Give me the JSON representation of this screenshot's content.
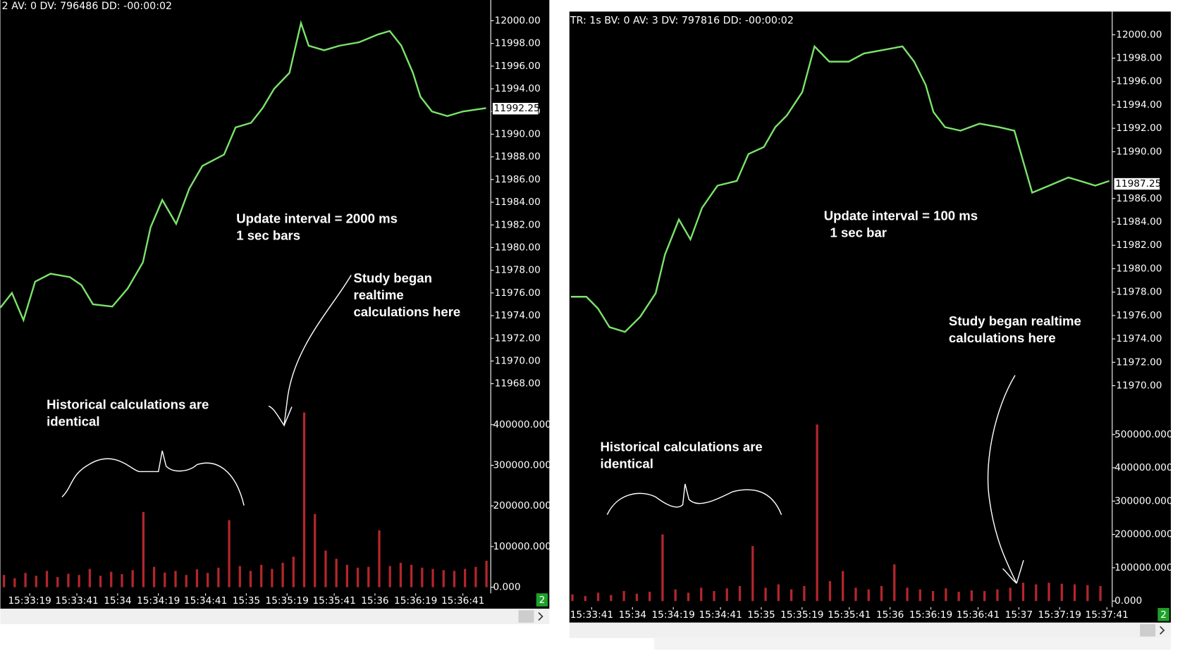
{
  "chart_data": [
    {
      "type": "price-volume",
      "header": "2 AV: 0 DV: 796486 DD: -00:00:02",
      "color": "#7be36b",
      "volume_color": "#b3262b",
      "x": [
        5.3,
        10.7,
        16.1,
        21.5,
        28.7,
        37.7,
        43.1,
        48.5,
        57.5,
        64.7,
        71.8,
        75.4,
        80.8,
        87.3,
        93.4,
        99.5,
        109.6,
        115.0,
        122.2,
        127.6,
        133.0,
        140.1,
        145.5,
        149.1,
        156.3,
        163.5,
        172.5,
        181.5,
        186.9,
        192.3,
        197.7,
        201.2,
        206.6,
        213.8,
        221.0,
        231.8
      ],
      "values": [
        11974.7,
        11976.0,
        11973.6,
        11977.0,
        11977.7,
        11977.4,
        11976.7,
        11975.0,
        11974.8,
        11976.4,
        11978.7,
        11981.8,
        11984.2,
        11982.1,
        11985.2,
        11987.2,
        11988.2,
        11990.6,
        11991.0,
        11992.3,
        11994.0,
        11995.4,
        11999.8,
        11997.8,
        11997.4,
        11997.8,
        11998.1,
        11998.8,
        11999.1,
        11997.8,
        11995.4,
        11993.3,
        11992.0,
        11991.6,
        11992.0,
        11992.3
      ],
      "volume": {
        "x": [
          7,
          12,
          17,
          22,
          27,
          32,
          37,
          42,
          47,
          52,
          57,
          62,
          67,
          72,
          77,
          82,
          87,
          92,
          97,
          102,
          107,
          112,
          117,
          122,
          127,
          132,
          137,
          142,
          147,
          152,
          157,
          162,
          167,
          172,
          177,
          182,
          187,
          192,
          197,
          202,
          207,
          212,
          217,
          222,
          227,
          232
        ],
        "values": [
          30000,
          22000,
          35000,
          28000,
          40000,
          25000,
          33000,
          30000,
          45000,
          28000,
          38000,
          32000,
          42000,
          185000,
          50000,
          36000,
          40000,
          30000,
          44000,
          35000,
          48000,
          165000,
          52000,
          40000,
          55000,
          45000,
          60000,
          75000,
          430000,
          180000,
          90000,
          70000,
          55000,
          48000,
          50000,
          140000,
          52000,
          60000,
          55000,
          48000,
          45000,
          42000,
          40000,
          45000,
          50000,
          65000
        ]
      },
      "last_price": 11992.25,
      "xlim": [
        5.3,
        234.0
      ],
      "xticks": [
        {
          "value": 19,
          "label": "15:33:19"
        },
        {
          "value": 41,
          "label": "15:33:41"
        },
        {
          "value": 60,
          "label": "15:34"
        },
        {
          "value": 79,
          "label": "15:34:19"
        },
        {
          "value": 101,
          "label": "15:34:41"
        },
        {
          "value": 120,
          "label": "15:35"
        },
        {
          "value": 139,
          "label": "15:35:19"
        },
        {
          "value": 161,
          "label": "15:35:41"
        },
        {
          "value": 180,
          "label": "15:36"
        },
        {
          "value": 199,
          "label": "15:36:19"
        },
        {
          "value": 221,
          "label": "15:36:41"
        }
      ],
      "ylim": [
        11966.5,
        12001.83
      ],
      "yticks": [
        {
          "value": 12000,
          "label": "12000.00"
        },
        {
          "value": 11998,
          "label": "11998.00"
        },
        {
          "value": 11996,
          "label": "11996.00"
        },
        {
          "value": 11994,
          "label": "11994.00"
        },
        {
          "value": 11992,
          "label": "11992.00"
        },
        {
          "value": 11990,
          "label": "11990.00"
        },
        {
          "value": 11988,
          "label": "11988.00"
        },
        {
          "value": 11986,
          "label": "11986.00"
        },
        {
          "value": 11984,
          "label": "11984.00"
        },
        {
          "value": 11982,
          "label": "11982.00"
        },
        {
          "value": 11980,
          "label": "11980.00"
        },
        {
          "value": 11978,
          "label": "11978.00"
        },
        {
          "value": 11976,
          "label": "11976.00"
        },
        {
          "value": 11974,
          "label": "11974.00"
        },
        {
          "value": 11972,
          "label": "11972.00"
        },
        {
          "value": 11970,
          "label": "11970.00"
        },
        {
          "value": 11968,
          "label": "11968.00"
        }
      ],
      "y2lim": [
        0,
        440000
      ],
      "y2ticks": [
        {
          "value": 0,
          "label": "0.000"
        },
        {
          "value": 100000,
          "label": "100000.000"
        },
        {
          "value": 200000,
          "label": "200000.000"
        },
        {
          "value": 300000,
          "label": "300000.000"
        },
        {
          "value": 400000,
          "label": "400000.000"
        }
      ],
      "badge": "2",
      "annotations": [
        [
          "Update interval = 2000 ms",
          "1 sec bars"
        ],
        [
          "Study began",
          "realtime",
          "calculations here"
        ],
        [
          "Historical calculations are",
          "identical"
        ]
      ]
    },
    {
      "type": "price-volume",
      "header": "TR: 1s BV: 0 AV: 3 DV: 797816 DD: -00:00:02",
      "color": "#7be36b",
      "volume_color": "#b3262b",
      "x": [
        31.3,
        38.5,
        43.9,
        49.3,
        56.5,
        63.6,
        70.8,
        75.1,
        81.6,
        87.0,
        92.4,
        99.6,
        108.6,
        114.0,
        121.2,
        126.5,
        131.9,
        139.1,
        144.8,
        151.7,
        160.7,
        167.8,
        176.8,
        185.8,
        191.2,
        196.6,
        200.2,
        205.6,
        212.8,
        221.7,
        230.7,
        237.9,
        241.5,
        246.2,
        254.1,
        263.1,
        268.5,
        275.6,
        282.1
      ],
      "values": [
        11977.6,
        11977.6,
        11976.6,
        11975.0,
        11974.6,
        11975.9,
        11977.9,
        11981.2,
        11984.2,
        11982.5,
        11985.2,
        11987.1,
        11987.5,
        11989.8,
        11990.4,
        11992.1,
        11993.1,
        11995.1,
        11999.0,
        11997.7,
        11997.7,
        11998.4,
        11998.7,
        11999.0,
        11997.7,
        11995.7,
        11993.4,
        11992.1,
        11991.8,
        11992.4,
        11992.1,
        11991.8,
        11989.5,
        11986.5,
        11987.1,
        11987.8,
        11987.5,
        11987.1,
        11987.5
      ],
      "volume": {
        "x": [
          32,
          38,
          44,
          50,
          56,
          62,
          68,
          74,
          80,
          86,
          92,
          98,
          104,
          110,
          116,
          122,
          128,
          134,
          140,
          146,
          152,
          158,
          164,
          170,
          176,
          182,
          188,
          194,
          200,
          206,
          212,
          218,
          224,
          230,
          236,
          242,
          248,
          254,
          260,
          266,
          272,
          278
        ],
        "values": [
          20000,
          15000,
          25000,
          18000,
          30000,
          22000,
          28000,
          200000,
          35000,
          25000,
          40000,
          30000,
          38000,
          45000,
          165000,
          40000,
          50000,
          35000,
          45000,
          530000,
          60000,
          90000,
          40000,
          35000,
          45000,
          110000,
          40000,
          35000,
          30000,
          38000,
          28000,
          32000,
          30000,
          35000,
          40000,
          55000,
          50000,
          55000,
          52000,
          50000,
          48000,
          45000
        ]
      },
      "last_price": 11987.25,
      "xlim": [
        30.6,
        283.5
      ],
      "xticks": [
        {
          "value": 41,
          "label": "15:33:41"
        },
        {
          "value": 60,
          "label": "15:34"
        },
        {
          "value": 79,
          "label": "15:34:19"
        },
        {
          "value": 101,
          "label": "15:34:41"
        },
        {
          "value": 120,
          "label": "15:35"
        },
        {
          "value": 139,
          "label": "15:35:19"
        },
        {
          "value": 161,
          "label": "15:35:41"
        },
        {
          "value": 180,
          "label": "15:36"
        },
        {
          "value": 199,
          "label": "15:36:19"
        },
        {
          "value": 221,
          "label": "15:36:41"
        },
        {
          "value": 240,
          "label": "15:37"
        },
        {
          "value": 259,
          "label": "15:37:19"
        },
        {
          "value": 281,
          "label": "15:37:41"
        }
      ],
      "ylim": [
        11967.4,
        12001.98
      ],
      "yticks": [
        {
          "value": 12000,
          "label": "12000.00"
        },
        {
          "value": 11998,
          "label": "11998.00"
        },
        {
          "value": 11996,
          "label": "11996.00"
        },
        {
          "value": 11994,
          "label": "11994.00"
        },
        {
          "value": 11992,
          "label": "11992.00"
        },
        {
          "value": 11990,
          "label": "11990.00"
        },
        {
          "value": 11986,
          "label": "11986.00"
        },
        {
          "value": 11984,
          "label": "11984.00"
        },
        {
          "value": 11982,
          "label": "11982.00"
        },
        {
          "value": 11980,
          "label": "11980.00"
        },
        {
          "value": 11978,
          "label": "11978.00"
        },
        {
          "value": 11976,
          "label": "11976.00"
        },
        {
          "value": 11974,
          "label": "11974.00"
        },
        {
          "value": 11972,
          "label": "11972.00"
        },
        {
          "value": 11970,
          "label": "11970.00"
        }
      ],
      "y2lim": [
        0,
        532000
      ],
      "y2ticks": [
        {
          "value": 0,
          "label": "0.000"
        },
        {
          "value": 100000,
          "label": "100000.000"
        },
        {
          "value": 200000,
          "label": "200000.000"
        },
        {
          "value": 300000,
          "label": "300000.000"
        },
        {
          "value": 400000,
          "label": "400000.000"
        },
        {
          "value": 500000,
          "label": "500000.000"
        }
      ],
      "badge": "2",
      "annotations": [
        [
          "Update interval = 100 ms",
          "1 sec bar"
        ],
        [
          "Study began realtime",
          "calculations here"
        ],
        [
          "Historical calculations are",
          "identical"
        ]
      ]
    }
  ]
}
